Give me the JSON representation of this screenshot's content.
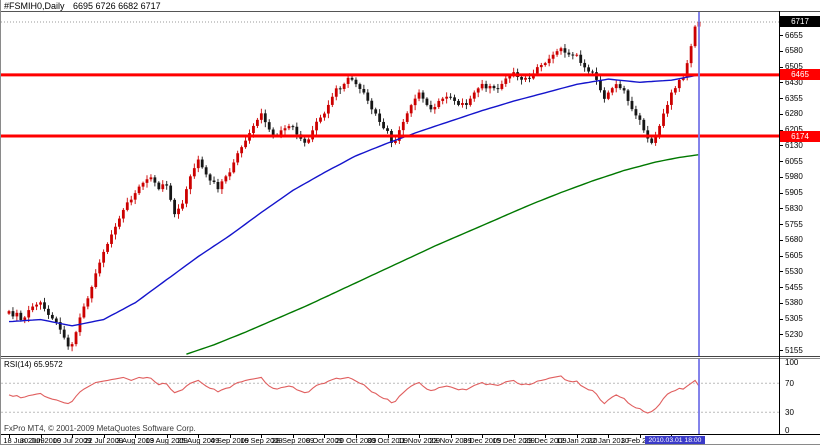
{
  "window": {
    "title": "#FSMIH0,Daily",
    "ohlc": "6695 6726 6682 6717"
  },
  "copyright": "FxPro MT4, © 2001-2009 MetaQuotes Software Corp.",
  "axis": {
    "current_price": "6717",
    "crosshair_date": "2010.03.01 18:00"
  },
  "hlines": [
    {
      "price": 6465,
      "label": "6465"
    },
    {
      "price": 6174,
      "label": "6174"
    }
  ],
  "rsi": {
    "label": "RSI(14) 65.9572",
    "period": 14,
    "current": 65.9572
  },
  "colors": {
    "hline": "#ff0000",
    "candle_up": "#cc0000",
    "candle_down": "#161616",
    "ma_fast": "#1414cc",
    "ma_slow": "#007800",
    "vline": "#7575e8",
    "vline_box": "#3a3ac8",
    "rsi_line": "#e05f5f",
    "dash": "#bbbbbb",
    "dotted_price": "#999999"
  },
  "chart_data": [
    {
      "type": "candlestick",
      "title": "#FSMIH0 Daily",
      "xlabel": "date",
      "ylabel": "price",
      "ylim": [
        5127,
        6769
      ],
      "y_ticks": [
        6655,
        6580,
        6505,
        6430,
        6355,
        6280,
        6205,
        6130,
        6055,
        5980,
        5905,
        5830,
        5755,
        5680,
        5605,
        5530,
        5455,
        5380,
        5305,
        5230,
        5155
      ],
      "x_tick_labels": [
        "18 Jun 2009",
        "30 Jun 2009",
        "10 Jul 2009",
        "22 Jul 2009",
        "3 Aug 2009",
        "13 Aug 2009",
        "25 Aug 2009",
        "4 Sep 2009",
        "16 Sep 2009",
        "28 Sep 2009",
        "8 Oct 2009",
        "20 Oct 2009",
        "30 Oct 2009",
        "11 Nov 2009",
        "23 Nov 2009",
        "3 Dec 2009",
        "15 Dec 2009",
        "29 Dec 2009",
        "12 Jan 2010",
        "22 Jan 2010",
        "3 Feb 2010",
        "15 Feb 2010"
      ],
      "bars_per_tick": 8,
      "closes": [
        5340,
        5315,
        5332,
        5298,
        5310,
        5345,
        5362,
        5371,
        5382,
        5351,
        5322,
        5305,
        5288,
        5252,
        5214,
        5172,
        5183,
        5240,
        5310,
        5362,
        5401,
        5455,
        5520,
        5571,
        5622,
        5660,
        5705,
        5742,
        5781,
        5822,
        5858,
        5871,
        5902,
        5933,
        5951,
        5968,
        5977,
        5952,
        5921,
        5944,
        5938,
        5870,
        5802,
        5828,
        5852,
        5921,
        5982,
        6021,
        6062,
        6025,
        5991,
        5962,
        5955,
        5921,
        5958,
        5982,
        6001,
        6048,
        6092,
        6121,
        6152,
        6188,
        6222,
        6251,
        6282,
        6240,
        6205,
        6181,
        6178,
        6201,
        6211,
        6221,
        6218,
        6182,
        6161,
        6142,
        6158,
        6201,
        6242,
        6262,
        6281,
        6322,
        6361,
        6401,
        6398,
        6422,
        6451,
        6442,
        6421,
        6398,
        6381,
        6342,
        6301,
        6281,
        6241,
        6211,
        6198,
        6141,
        6151,
        6202,
        6241,
        6282,
        6321,
        6352,
        6381,
        6352,
        6322,
        6301,
        6312,
        6341,
        6352,
        6361,
        6358,
        6341,
        6322,
        6331,
        6322,
        6352,
        6381,
        6401,
        6422,
        6401,
        6412,
        6402,
        6398,
        6422,
        6448,
        6462,
        6478,
        6455,
        6442,
        6451,
        6448,
        6472,
        6502,
        6512,
        6521,
        6542,
        6561,
        6578,
        6592,
        6571,
        6562,
        6558,
        6561,
        6522,
        6501,
        6481,
        6478,
        6441,
        6392,
        6351,
        6381,
        6402,
        6421,
        6402,
        6391,
        6341,
        6302,
        6272,
        6251,
        6201,
        6162,
        6141,
        6181,
        6222,
        6281,
        6322,
        6381,
        6402,
        6441,
        6452,
        6521,
        6602,
        6695,
        6717
      ],
      "last_bar_ohlc": [
        6695,
        6726,
        6682,
        6717
      ],
      "horizontal_lines": [
        6465,
        6174
      ],
      "vertical_line_date": "2010.03.01 18:00",
      "ma_fast_waypoints": [
        [
          0,
          5290
        ],
        [
          8,
          5300
        ],
        [
          16,
          5270
        ],
        [
          24,
          5300
        ],
        [
          32,
          5380
        ],
        [
          40,
          5490
        ],
        [
          48,
          5600
        ],
        [
          56,
          5700
        ],
        [
          64,
          5810
        ],
        [
          72,
          5915
        ],
        [
          80,
          6000
        ],
        [
          88,
          6080
        ],
        [
          96,
          6140
        ],
        [
          104,
          6195
        ],
        [
          112,
          6245
        ],
        [
          120,
          6295
        ],
        [
          128,
          6340
        ],
        [
          136,
          6380
        ],
        [
          144,
          6420
        ],
        [
          152,
          6445
        ],
        [
          160,
          6430
        ],
        [
          168,
          6440
        ],
        [
          175,
          6465
        ]
      ],
      "ma_slow_waypoints": [
        [
          45,
          5135
        ],
        [
          52,
          5180
        ],
        [
          60,
          5240
        ],
        [
          68,
          5305
        ],
        [
          76,
          5370
        ],
        [
          84,
          5440
        ],
        [
          92,
          5510
        ],
        [
          100,
          5580
        ],
        [
          108,
          5650
        ],
        [
          116,
          5715
        ],
        [
          124,
          5780
        ],
        [
          132,
          5845
        ],
        [
          140,
          5905
        ],
        [
          148,
          5960
        ],
        [
          156,
          6010
        ],
        [
          164,
          6050
        ],
        [
          170,
          6072
        ],
        [
          175,
          6085
        ]
      ]
    },
    {
      "type": "line",
      "title": "RSI(14)",
      "ylim": [
        0,
        100
      ],
      "y_ticks": [
        100,
        70,
        30,
        0
      ],
      "levels": [
        70,
        30
      ],
      "current": 65.9572,
      "values": [
        54,
        52,
        53,
        50,
        51,
        53,
        54,
        55,
        56,
        52,
        50,
        48,
        47,
        45,
        43,
        42,
        45,
        52,
        58,
        62,
        65,
        68,
        71,
        72,
        73,
        74,
        75,
        76,
        77,
        78,
        76,
        74,
        76,
        78,
        77,
        78,
        77,
        72,
        68,
        70,
        69,
        62,
        57,
        59,
        61,
        66,
        70,
        72,
        74,
        70,
        66,
        63,
        62,
        58,
        61,
        63,
        64,
        68,
        71,
        72,
        74,
        75,
        76,
        77,
        78,
        71,
        66,
        63,
        62,
        64,
        65,
        66,
        65,
        61,
        59,
        57,
        58,
        63,
        67,
        69,
        70,
        73,
        75,
        77,
        76,
        77,
        78,
        76,
        73,
        70,
        68,
        63,
        58,
        56,
        52,
        49,
        48,
        43,
        45,
        52,
        57,
        62,
        66,
        69,
        71,
        66,
        62,
        60,
        61,
        64,
        65,
        66,
        65,
        63,
        61,
        62,
        61,
        64,
        67,
        69,
        71,
        68,
        69,
        68,
        67,
        69,
        72,
        73,
        74,
        70,
        68,
        69,
        68,
        70,
        73,
        74,
        75,
        77,
        78,
        79,
        80,
        75,
        73,
        72,
        73,
        67,
        64,
        61,
        60,
        55,
        47,
        42,
        47,
        51,
        54,
        51,
        49,
        43,
        39,
        36,
        35,
        31,
        29,
        31,
        35,
        41,
        49,
        55,
        58,
        60,
        63,
        62,
        66,
        70,
        74,
        66
      ]
    }
  ]
}
